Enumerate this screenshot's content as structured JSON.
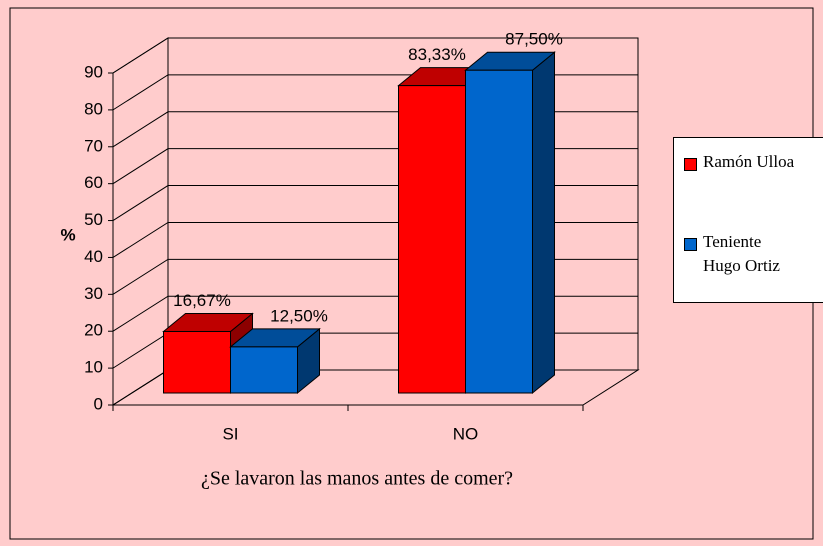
{
  "chart_data": {
    "type": "bar3d",
    "xlabel": "¿Se lavaron las manos antes de comer?",
    "ylabel": "%",
    "categories": [
      "SI",
      "NO"
    ],
    "series": [
      {
        "name": "Ramón Ulloa",
        "color": "#ff0000",
        "values": [
          16.67,
          83.33
        ],
        "value_labels": [
          "16,67%",
          "83,33%"
        ]
      },
      {
        "name": "Teniente Hugo Ortiz",
        "color": "#0066cc",
        "values": [
          12.5,
          87.5
        ],
        "value_labels": [
          "12,50%",
          "87,50%"
        ]
      }
    ],
    "ylim": [
      0,
      90
    ],
    "yticks": [
      0,
      10,
      20,
      30,
      40,
      50,
      60,
      70,
      80,
      90
    ],
    "grid": true,
    "legend": "right"
  }
}
